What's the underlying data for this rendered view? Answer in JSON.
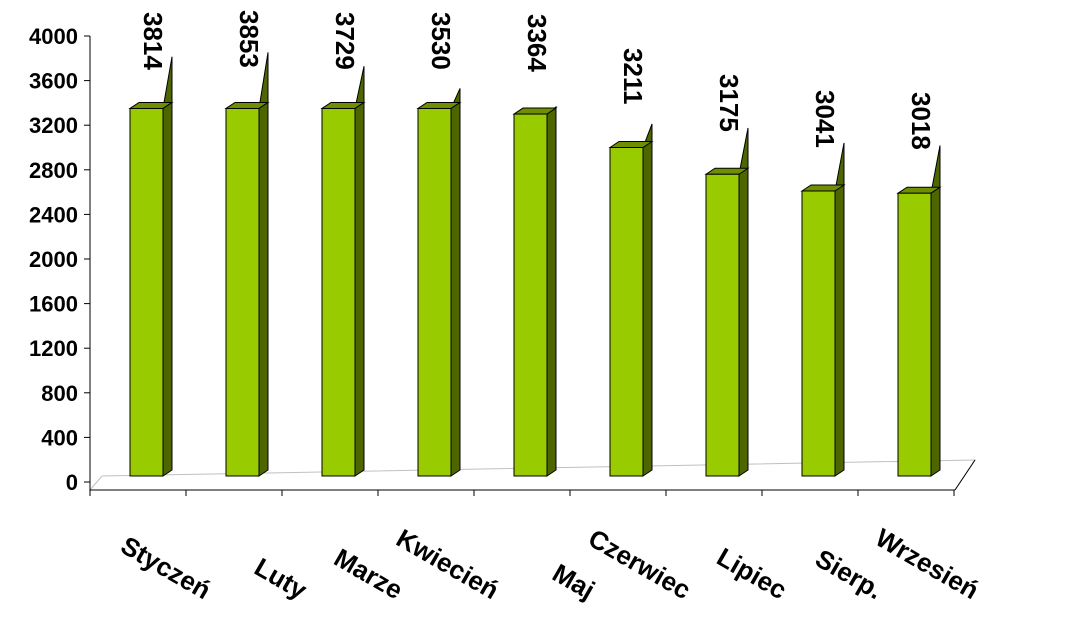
{
  "chart_data": {
    "type": "bar",
    "title": "",
    "xlabel": "",
    "ylabel": "",
    "ylim": [
      0,
      4000
    ],
    "yticks": [
      0,
      400,
      800,
      1200,
      1600,
      2000,
      2400,
      2800,
      3200,
      3600,
      4000
    ],
    "categories": [
      "Styczeń",
      "Luty",
      "Marzec",
      "Kwiecień",
      "Maj",
      "Czerwiec",
      "Lipiec",
      "Sierpień",
      "Wrzesień"
    ],
    "categories_visible": [
      "Styczeń",
      "Luty",
      "Marze",
      "Kwiecień",
      "Maj",
      "Czerwiec",
      "Lipiec",
      "Sierp.",
      "Wrzesień"
    ],
    "series": [
      {
        "values": [
          3814,
          3853,
          3729,
          3530,
          3364,
          3211,
          3175,
          3041,
          3018
        ]
      }
    ],
    "data_labels": [
      "3814",
      "3853",
      "3729",
      "3530",
      "3364",
      "3211",
      "3175",
      "3041",
      "3018"
    ],
    "bar_fill_heights": [
      3350,
      3350,
      3350,
      3350,
      3300,
      3000,
      2760,
      2610,
      2590
    ],
    "grid": false,
    "legend": "none",
    "style": {
      "bar_front": "#99cc00",
      "bar_side": "#4d6600",
      "bar_top": "#6f8f00",
      "bar_outline": "#000000",
      "axis": "#000000",
      "floor": "#c0c0c0"
    }
  }
}
